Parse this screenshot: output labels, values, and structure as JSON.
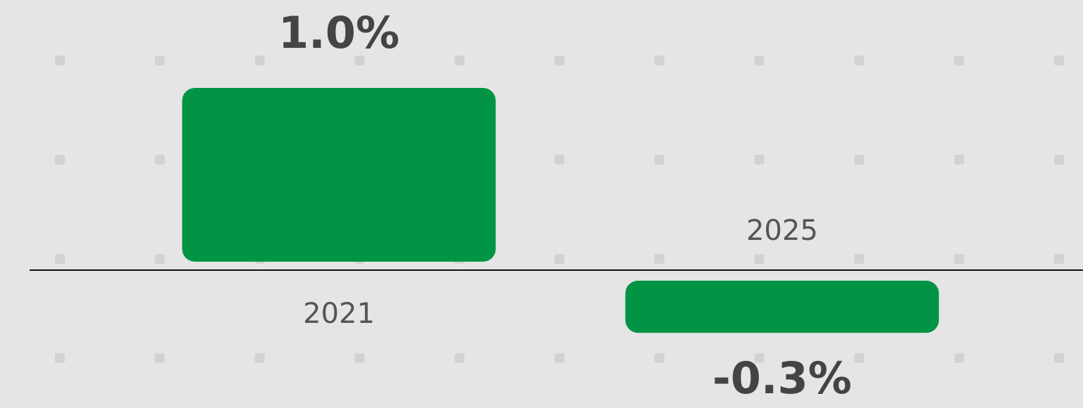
{
  "chart_data": {
    "type": "bar",
    "categories": [
      "2021",
      "2025"
    ],
    "values": [
      1.0,
      -0.3
    ],
    "value_labels": [
      "1.0%",
      "-0.3%"
    ],
    "color": "#009444"
  }
}
